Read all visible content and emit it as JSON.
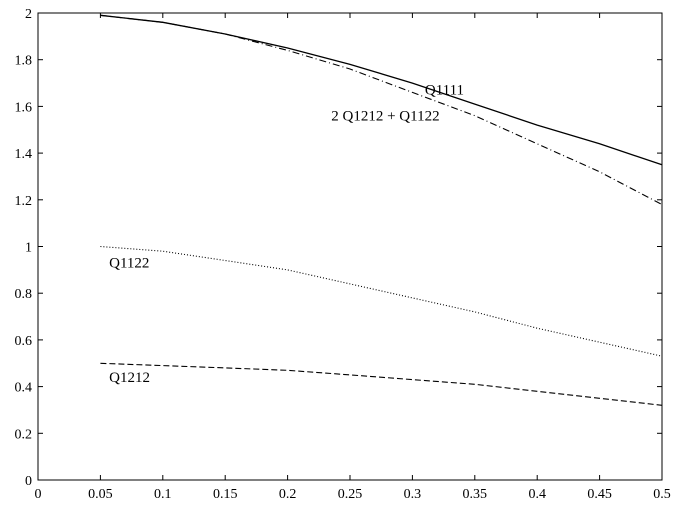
{
  "chart_data": {
    "type": "line",
    "title": "",
    "xlabel": "",
    "ylabel": "",
    "xlim": [
      0,
      0.5
    ],
    "ylim": [
      0,
      2
    ],
    "grid": false,
    "x_ticks": [
      0,
      0.05,
      0.1,
      0.15,
      0.2,
      0.25,
      0.3,
      0.35,
      0.4,
      0.45,
      0.5
    ],
    "x_tick_labels": [
      "0",
      "0.05",
      "0.1",
      "0.15",
      "0.2",
      "0.25",
      "0.3",
      "0.35",
      "0.4",
      "0.45",
      "0.5"
    ],
    "y_ticks": [
      0,
      0.2,
      0.4,
      0.6,
      0.8,
      1,
      1.2,
      1.4,
      1.6,
      1.8,
      2
    ],
    "y_tick_labels": [
      "0",
      "0.2",
      "0.4",
      "0.6",
      "0.8",
      "1",
      "1.2",
      "1.4",
      "1.6",
      "1.8",
      "2"
    ],
    "x": [
      0.05,
      0.1,
      0.15,
      0.2,
      0.25,
      0.3,
      0.35,
      0.4,
      0.45,
      0.5
    ],
    "series": [
      {
        "name": "Q1111",
        "style": "solid",
        "color": "#000000",
        "values": [
          1.99,
          1.96,
          1.91,
          1.85,
          1.78,
          1.7,
          1.61,
          1.52,
          1.44,
          1.35
        ]
      },
      {
        "name": "2 Q1212 + Q1122",
        "style": "dashdot",
        "color": "#000000",
        "values": [
          1.99,
          1.96,
          1.91,
          1.84,
          1.76,
          1.66,
          1.56,
          1.44,
          1.32,
          1.18
        ]
      },
      {
        "name": "Q1122",
        "style": "dotted",
        "color": "#000000",
        "values": [
          1.0,
          0.98,
          0.94,
          0.9,
          0.84,
          0.78,
          0.72,
          0.65,
          0.59,
          0.53
        ]
      },
      {
        "name": "Q1212",
        "style": "dashed",
        "color": "#000000",
        "values": [
          0.5,
          0.49,
          0.48,
          0.47,
          0.45,
          0.43,
          0.41,
          0.38,
          0.35,
          0.32
        ]
      }
    ],
    "annotations": [
      {
        "text": "Q1111",
        "x": 0.31,
        "y": 1.65
      },
      {
        "text": "2 Q1212 + Q1122",
        "x": 0.235,
        "y": 1.54
      },
      {
        "text": "Q1122",
        "x": 0.057,
        "y": 0.91
      },
      {
        "text": "Q1212",
        "x": 0.057,
        "y": 0.42
      }
    ]
  }
}
